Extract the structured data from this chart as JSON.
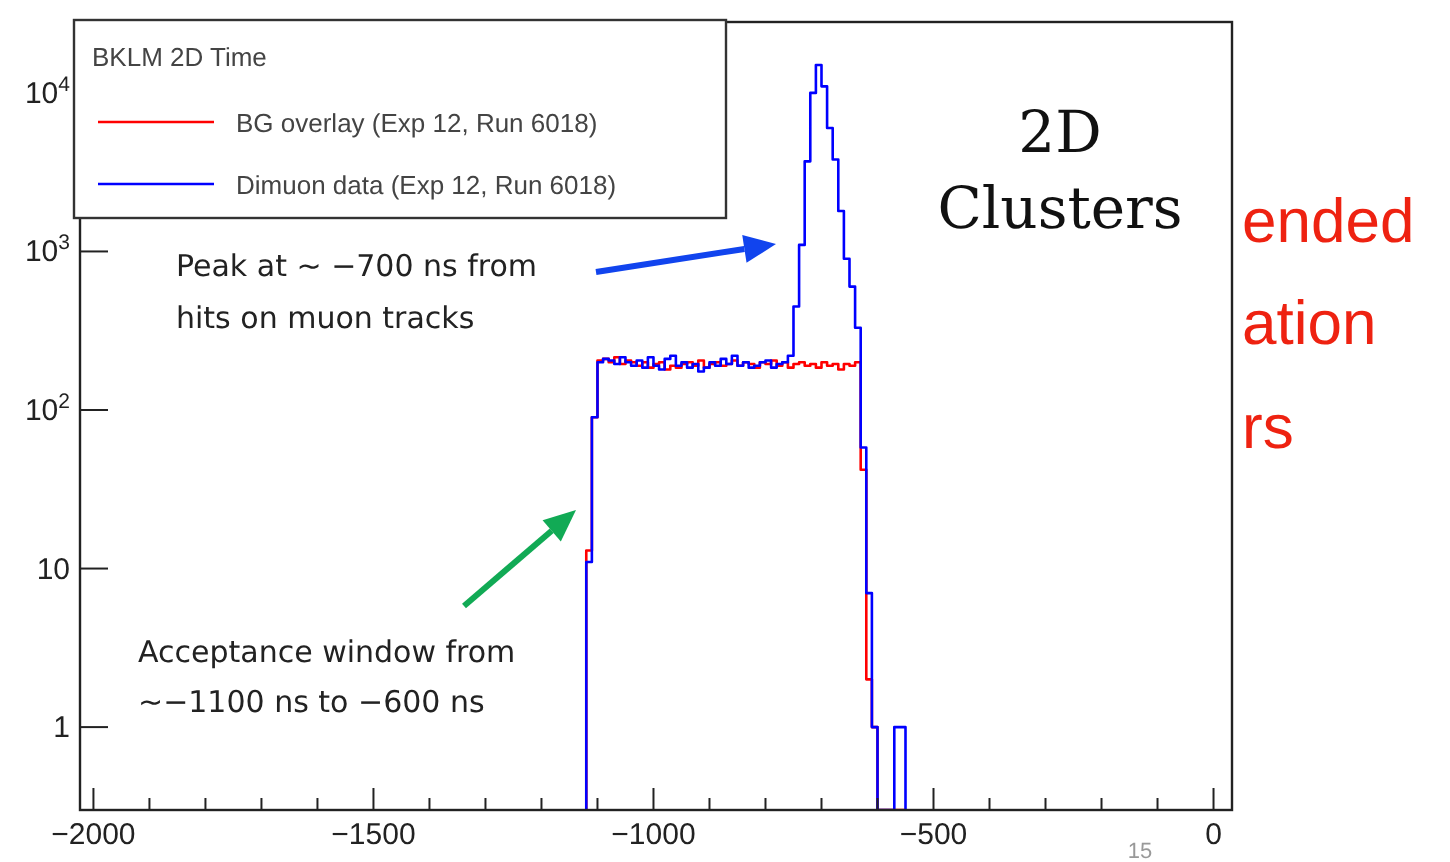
{
  "chart_data": {
    "type": "histogram",
    "legend_title": "BKLM 2D Time",
    "legend": "top left",
    "log": "y",
    "grid": false,
    "bins": [
      -1120,
      -1110,
      -1100,
      -1090,
      -1080,
      -1070,
      -1060,
      -1050,
      -1040,
      -1030,
      -1020,
      -1010,
      -1000,
      -990,
      -980,
      -970,
      -960,
      -950,
      -940,
      -930,
      -920,
      -910,
      -900,
      -890,
      -880,
      -870,
      -860,
      -850,
      -840,
      -830,
      -820,
      -810,
      -800,
      -790,
      -780,
      -770,
      -760,
      -750,
      -740,
      -730,
      -720,
      -710,
      -700,
      -690,
      -680,
      -670,
      -660,
      -650,
      -640,
      -630,
      -620,
      -610,
      -600,
      -590,
      -580,
      -570,
      -560,
      -550
    ],
    "series": [
      {
        "name": "BG overlay (Exp 12, Run 6018)",
        "color": "#ff0000",
        "values": [
          13,
          90,
          205,
          210,
          200,
          215,
          195,
          205,
          200,
          190,
          200,
          185,
          195,
          200,
          180,
          190,
          185,
          195,
          200,
          190,
          205,
          185,
          195,
          200,
          190,
          195,
          205,
          190,
          200,
          195,
          185,
          200,
          195,
          205,
          190,
          200,
          185,
          195,
          200,
          190,
          195,
          185,
          200,
          190,
          195,
          180,
          195,
          190,
          200,
          42,
          2,
          1,
          null,
          null,
          null,
          null,
          null
        ]
      },
      {
        "name": "Dimuon data (Exp 12, Run 6018)",
        "color": "#0000ff",
        "values": [
          11,
          90,
          200,
          210,
          205,
          195,
          215,
          200,
          190,
          205,
          185,
          215,
          190,
          180,
          210,
          220,
          190,
          200,
          185,
          195,
          175,
          185,
          200,
          190,
          210,
          195,
          220,
          190,
          200,
          185,
          190,
          200,
          205,
          185,
          195,
          200,
          220,
          450,
          1100,
          3700,
          10000,
          15000,
          11000,
          6000,
          3800,
          1800,
          900,
          600,
          330,
          58,
          7,
          1,
          null,
          null,
          null,
          1,
          1
        ]
      }
    ],
    "xlim": [
      -2024,
      33
    ],
    "xticks": [
      {
        "value": -2000,
        "label": "−2000"
      },
      {
        "value": -1900,
        "label": null
      },
      {
        "value": -1800,
        "label": null
      },
      {
        "value": -1700,
        "label": null
      },
      {
        "value": -1600,
        "label": null
      },
      {
        "value": -1500,
        "label": "−1500"
      },
      {
        "value": -1400,
        "label": null
      },
      {
        "value": -1300,
        "label": null
      },
      {
        "value": -1200,
        "label": null
      },
      {
        "value": -1100,
        "label": null
      },
      {
        "value": -1000,
        "label": "−1000"
      },
      {
        "value": -900,
        "label": null
      },
      {
        "value": -800,
        "label": null
      },
      {
        "value": -700,
        "label": null
      },
      {
        "value": -600,
        "label": null
      },
      {
        "value": -500,
        "label": "−500"
      },
      {
        "value": -400,
        "label": null
      },
      {
        "value": -300,
        "label": null
      },
      {
        "value": -200,
        "label": null
      },
      {
        "value": -100,
        "label": null
      },
      0
    ],
    "ylim": [
      0.3,
      28000
    ],
    "yticks": [
      1,
      10,
      {
        "value": 100,
        "label": "10$^{2}$"
      },
      {
        "value": 1000,
        "label": "10$^{3}$"
      },
      {
        "value": 10000,
        "label": "10$^{4}$"
      }
    ],
    "annotations": [
      "Peak at ~ −700 ns from\nhits on muon tracks",
      "Acceptance window from\n~−1100 ns to −600 ns",
      "2D\nClusters",
      "ended",
      "ation",
      "rs",
      "15"
    ]
  }
}
